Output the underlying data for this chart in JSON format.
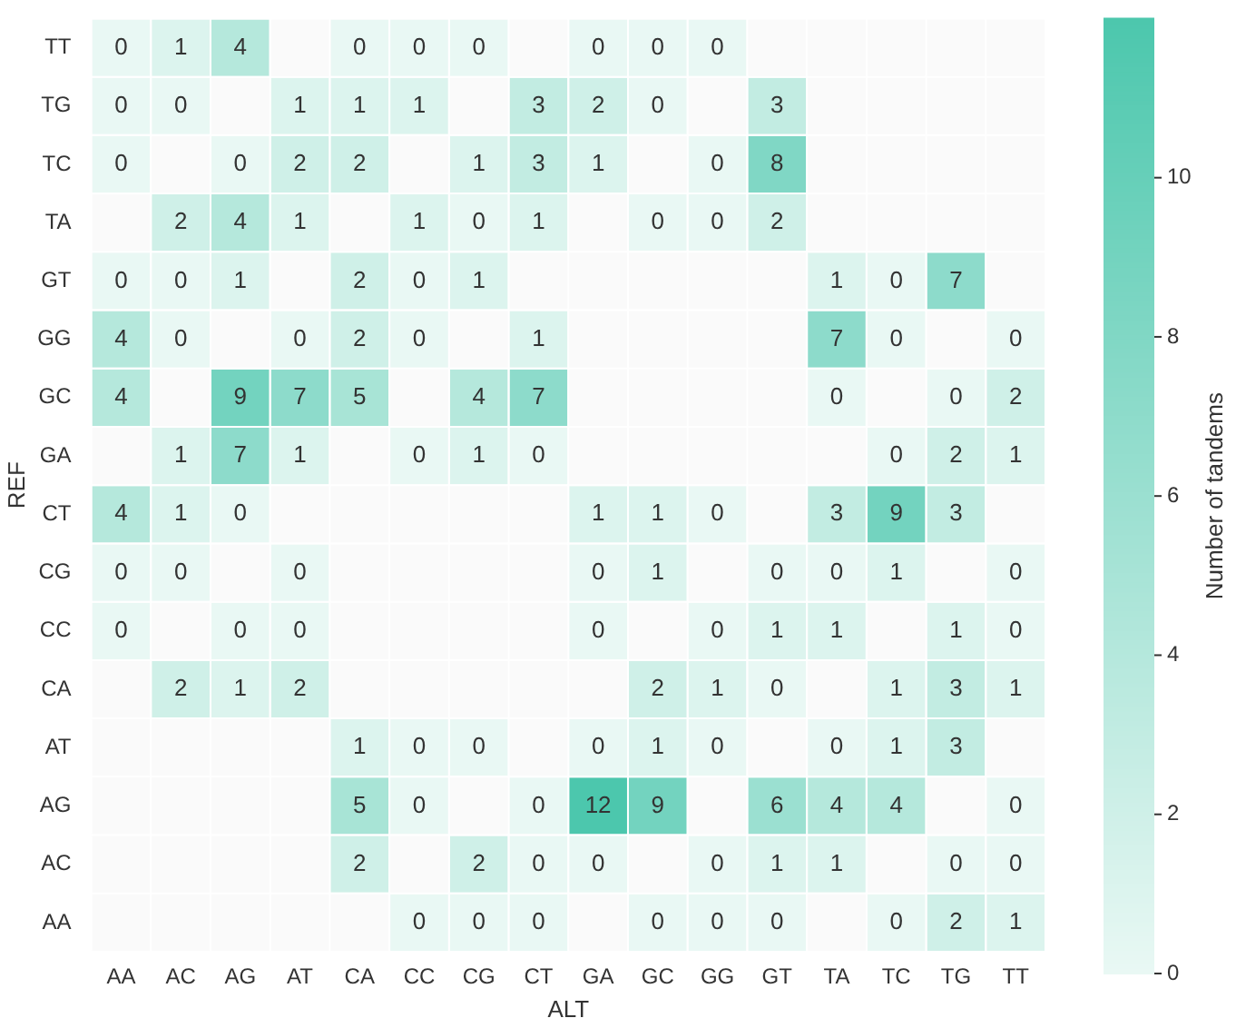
{
  "chart_data": {
    "type": "heatmap",
    "xlabel": "ALT",
    "ylabel": "REF",
    "clabel": "Number of tandems",
    "categories": [
      "AA",
      "AC",
      "AG",
      "AT",
      "CA",
      "CC",
      "CG",
      "CT",
      "GA",
      "GC",
      "GG",
      "GT",
      "TA",
      "TC",
      "TG",
      "TT"
    ],
    "y_categories": [
      "TT",
      "TG",
      "TC",
      "TA",
      "GT",
      "GG",
      "GC",
      "GA",
      "CT",
      "CG",
      "CC",
      "CA",
      "AT",
      "AG",
      "AC",
      "AA"
    ],
    "cells": [
      [
        0,
        1,
        4,
        null,
        0,
        0,
        0,
        null,
        0,
        0,
        0,
        null,
        null,
        null,
        null,
        null
      ],
      [
        0,
        0,
        null,
        1,
        1,
        1,
        null,
        3,
        2,
        0,
        null,
        3,
        null,
        null,
        null,
        null
      ],
      [
        0,
        null,
        0,
        2,
        2,
        null,
        1,
        3,
        1,
        null,
        0,
        8,
        null,
        null,
        null,
        null
      ],
      [
        null,
        2,
        4,
        1,
        null,
        1,
        0,
        1,
        null,
        0,
        0,
        2,
        null,
        null,
        null,
        null
      ],
      [
        0,
        0,
        1,
        null,
        2,
        0,
        1,
        null,
        null,
        null,
        null,
        null,
        1,
        0,
        7,
        null
      ],
      [
        4,
        0,
        null,
        0,
        2,
        0,
        null,
        1,
        null,
        null,
        null,
        null,
        7,
        0,
        null,
        0
      ],
      [
        4,
        null,
        9,
        7,
        5,
        null,
        4,
        7,
        null,
        null,
        null,
        null,
        0,
        null,
        0,
        2
      ],
      [
        null,
        1,
        7,
        1,
        null,
        0,
        1,
        0,
        null,
        null,
        null,
        null,
        null,
        0,
        2,
        1
      ],
      [
        4,
        1,
        0,
        null,
        null,
        null,
        null,
        null,
        1,
        1,
        0,
        null,
        3,
        9,
        3,
        null
      ],
      [
        0,
        0,
        null,
        0,
        null,
        null,
        null,
        null,
        0,
        1,
        null,
        0,
        0,
        1,
        null,
        0
      ],
      [
        0,
        null,
        0,
        0,
        null,
        null,
        null,
        null,
        0,
        null,
        0,
        1,
        1,
        null,
        1,
        0
      ],
      [
        null,
        2,
        1,
        2,
        null,
        null,
        null,
        null,
        null,
        2,
        1,
        0,
        null,
        1,
        3,
        1
      ],
      [
        null,
        null,
        null,
        null,
        1,
        0,
        0,
        null,
        0,
        1,
        0,
        null,
        0,
        1,
        3,
        null
      ],
      [
        null,
        null,
        null,
        null,
        5,
        0,
        null,
        0,
        12,
        9,
        null,
        6,
        4,
        4,
        null,
        0
      ],
      [
        null,
        null,
        null,
        null,
        2,
        null,
        2,
        0,
        0,
        null,
        0,
        1,
        1,
        null,
        0,
        0
      ],
      [
        null,
        null,
        null,
        null,
        null,
        0,
        0,
        0,
        null,
        0,
        0,
        0,
        null,
        0,
        2,
        1
      ]
    ],
    "clim": [
      0,
      12
    ],
    "cticks": [
      0,
      2,
      4,
      6,
      8,
      10
    ],
    "data_labels": true
  }
}
